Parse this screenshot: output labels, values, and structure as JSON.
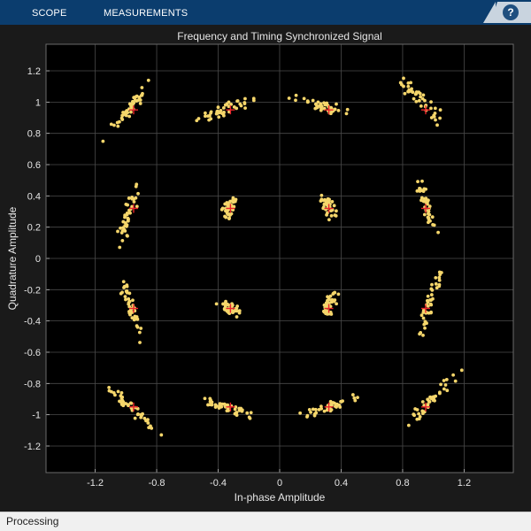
{
  "toolstrip": {
    "tabs": [
      {
        "label": "SCOPE"
      },
      {
        "label": "MEASUREMENTS"
      }
    ],
    "help_label": "?",
    "bg_color": "#0b3d6e"
  },
  "status": {
    "text": "Processing"
  },
  "chart_data": {
    "type": "scatter",
    "title": "Frequency and Timing Synchronized Signal",
    "xlabel": "In-phase Amplitude",
    "ylabel": "Quadrature Amplitude",
    "xlim": [
      -1.52,
      1.52
    ],
    "ylim": [
      -1.37,
      1.37
    ],
    "xticks": [
      -1.2,
      -0.8,
      -0.4,
      0,
      0.4,
      0.8,
      1.2
    ],
    "xtick_labels": [
      "-1.2",
      "-0.8",
      "-0.4",
      "0",
      "0.4",
      "0.8",
      "1.2"
    ],
    "yticks": [
      -1.2,
      -1,
      -0.8,
      -0.6,
      -0.4,
      -0.2,
      0,
      0.2,
      0.4,
      0.6,
      0.8,
      1,
      1.2
    ],
    "ytick_labels": [
      "-1.2",
      "-1",
      "-0.8",
      "-0.6",
      "-0.4",
      "-0.2",
      "0",
      "0.2",
      "0.4",
      "0.6",
      "0.8",
      "1",
      "1.2"
    ],
    "grid": true,
    "colors": {
      "background": "#000000",
      "grid": "#4a4a4a",
      "points": "#f5d66b",
      "reference": "#e8242b",
      "text": "#e6e6e6"
    },
    "reference_constellation": [
      [
        -0.95,
        0.95
      ],
      [
        -0.32,
        0.95
      ],
      [
        0.32,
        0.95
      ],
      [
        0.95,
        0.95
      ],
      [
        -0.95,
        0.32
      ],
      [
        -0.32,
        0.32
      ],
      [
        0.32,
        0.32
      ],
      [
        0.95,
        0.32
      ],
      [
        -0.95,
        -0.32
      ],
      [
        -0.32,
        -0.32
      ],
      [
        0.32,
        -0.32
      ],
      [
        0.95,
        -0.32
      ],
      [
        -0.95,
        -0.95
      ],
      [
        -0.32,
        -0.95
      ],
      [
        0.32,
        -0.95
      ],
      [
        0.95,
        -0.95
      ]
    ],
    "clusters": [
      {
        "center": [
          -0.98,
          0.95
        ],
        "dir": [
          0.6,
          0.8
        ],
        "spread": [
          0.11,
          0.018
        ]
      },
      {
        "center": [
          -0.36,
          0.95
        ],
        "dir": [
          0.92,
          0.38
        ],
        "spread": [
          0.11,
          0.018
        ]
      },
      {
        "center": [
          0.29,
          0.97
        ],
        "dir": [
          0.95,
          -0.3
        ],
        "spread": [
          0.1,
          0.018
        ]
      },
      {
        "center": [
          0.93,
          1.0
        ],
        "dir": [
          0.72,
          -0.7
        ],
        "spread": [
          0.12,
          0.02
        ]
      },
      {
        "center": [
          -0.98,
          0.29
        ],
        "dir": [
          0.25,
          0.97
        ],
        "spread": [
          0.1,
          0.018
        ]
      },
      {
        "center": [
          -0.33,
          0.32
        ],
        "dir": [
          0.3,
          0.95
        ],
        "spread": [
          0.045,
          0.02
        ]
      },
      {
        "center": [
          0.31,
          0.34
        ],
        "dir": [
          0.5,
          -0.86
        ],
        "spread": [
          0.045,
          0.02
        ]
      },
      {
        "center": [
          0.94,
          0.37
        ],
        "dir": [
          0.3,
          -0.95
        ],
        "spread": [
          0.1,
          0.018
        ]
      },
      {
        "center": [
          -0.97,
          -0.32
        ],
        "dir": [
          0.3,
          -0.95
        ],
        "spread": [
          0.1,
          0.018
        ]
      },
      {
        "center": [
          -0.32,
          -0.32
        ],
        "dir": [
          0.85,
          -0.5
        ],
        "spread": [
          0.045,
          0.02
        ]
      },
      {
        "center": [
          0.32,
          -0.3
        ],
        "dir": [
          0.5,
          0.86
        ],
        "spread": [
          0.045,
          0.02
        ]
      },
      {
        "center": [
          0.98,
          -0.27
        ],
        "dir": [
          0.3,
          0.95
        ],
        "spread": [
          0.1,
          0.018
        ]
      },
      {
        "center": [
          -0.95,
          -0.97
        ],
        "dir": [
          0.75,
          -0.65
        ],
        "spread": [
          0.12,
          0.02
        ]
      },
      {
        "center": [
          -0.33,
          -0.96
        ],
        "dir": [
          0.95,
          -0.3
        ],
        "spread": [
          0.11,
          0.018
        ]
      },
      {
        "center": [
          0.33,
          -0.95
        ],
        "dir": [
          0.95,
          0.32
        ],
        "spread": [
          0.11,
          0.018
        ]
      },
      {
        "center": [
          0.98,
          -0.91
        ],
        "dir": [
          0.72,
          0.7
        ],
        "spread": [
          0.12,
          0.02
        ]
      }
    ],
    "points_per_cluster": 42
  }
}
